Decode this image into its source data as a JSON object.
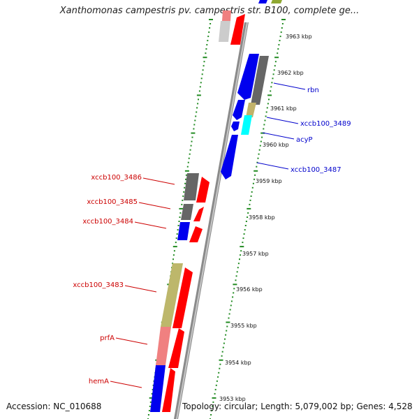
{
  "title": "Xanthomonas campestris pv. campestris str. B100, complete ge...",
  "footer": {
    "accession": "Accession: NC_010688",
    "summary": "Topology: circular; Length: 5,079,002 bp; Genes: 4,528"
  },
  "map": {
    "ticks": [
      "3963 kbp",
      "3962 kbp",
      "3961 kbp",
      "3960 kbp",
      "3959 kbp",
      "3958 kbp",
      "3957 kbp",
      "3956 kbp",
      "3955 kbp",
      "3954 kbp",
      "3953 kbp"
    ],
    "labels_right": [
      "rbn",
      "xccb100_3489",
      "acyP",
      "xccb100_3487"
    ],
    "labels_left": [
      "xccb100_3486",
      "xccb100_3485",
      "xccb100_3484",
      "xccb100_3483",
      "prfA",
      "hemA"
    ],
    "colors": {
      "blue": "#0000ee",
      "red": "#ff0000",
      "gray": "#666666",
      "light_gray": "#cccccc",
      "khaki": "#bdb76b",
      "pink": "#f08080",
      "cyan": "#00ffff",
      "green_track": "#228b22",
      "label_right": "#0000cc",
      "label_left": "#cc0000"
    }
  }
}
